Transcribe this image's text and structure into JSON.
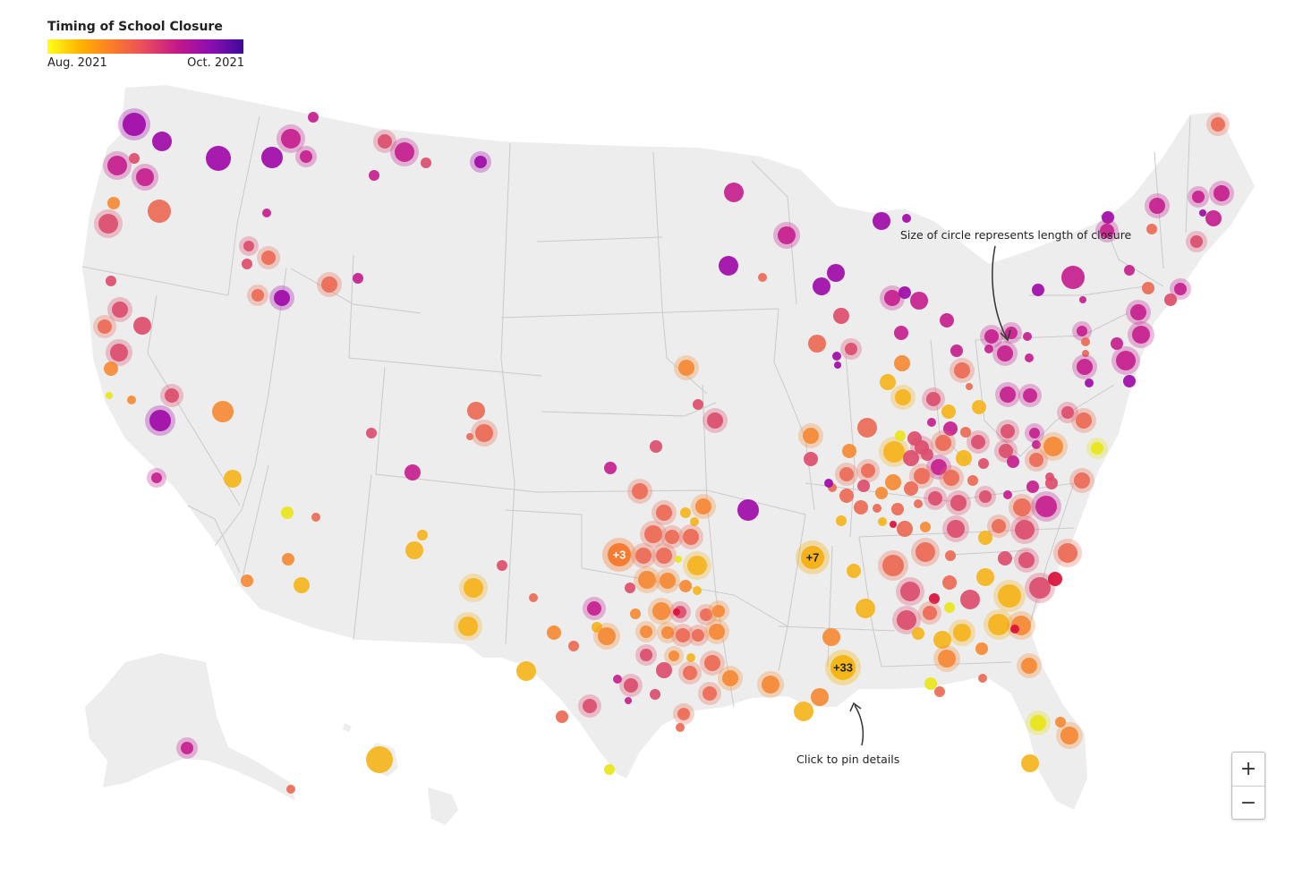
{
  "legend": {
    "title": "Timing of School Closure",
    "start_label": "Aug. 2021",
    "end_label": "Oct. 2021"
  },
  "annotations": {
    "size_note": "Size of circle represents length of closure",
    "click_note": "Click to pin details"
  },
  "clusters": [
    {
      "label": "+3",
      "color": "#f57c30"
    },
    {
      "label": "+7",
      "color": "#f5b21a"
    },
    {
      "label": "+33",
      "color": "#f5b718"
    }
  ],
  "zoom": {
    "in_label": "+",
    "out_label": "−"
  },
  "colors": {
    "land": "#ededed",
    "border": "#c9c9c9",
    "yellow": "#e8e51a",
    "gold": "#f5b41c",
    "orange": "#f58a35",
    "coral": "#ec6a55",
    "rose": "#dc4d6c",
    "magenta": "#c51f8e",
    "purple": "#a00aa8"
  }
}
